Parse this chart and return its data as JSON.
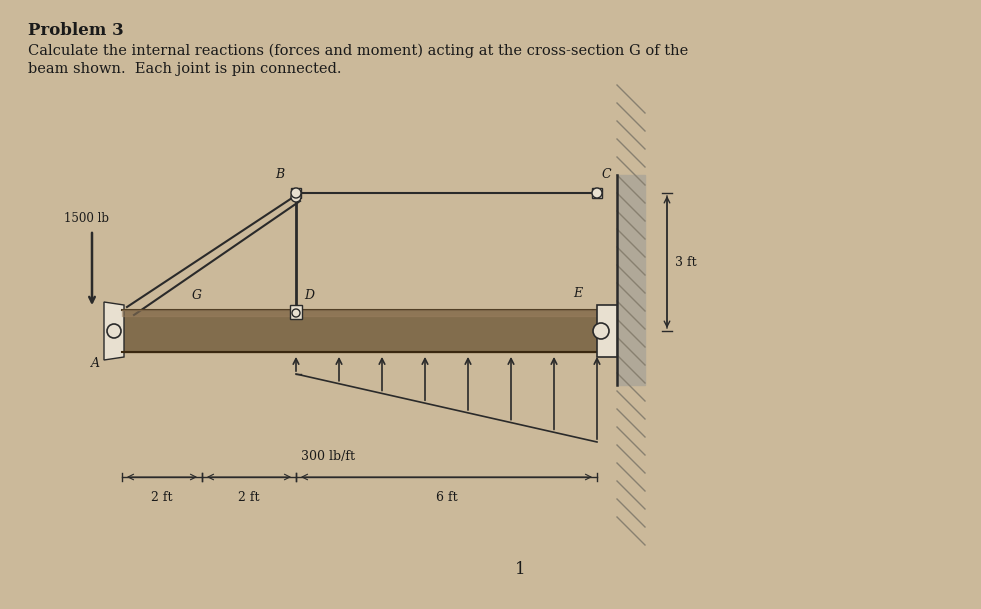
{
  "bg_color": "#cbb99a",
  "title": "Problem 3",
  "description_line1": "Calculate the internal reactions (forces and moment) acting at the cross-section G of the",
  "description_line2": "beam shown.  Each joint is pin connected.",
  "title_fontsize": 12,
  "desc_fontsize": 10.5,
  "page_number": "1",
  "beam_color": "#7a6545",
  "beam_shadow": "#5c4a2a",
  "force_label": "1500 lb",
  "dist_load_label": "300 lb/ft",
  "dim_2ft_1": "2 ft",
  "dim_2ft_2": "2 ft",
  "dim_6ft": "6 ft",
  "dim_3ft": "3 ft",
  "line_color": "#2a2a2a",
  "text_color": "#1a1a1a",
  "wall_fill": "#b0a898",
  "wall_hatch": "#888070",
  "pin_fill": "#e8e0d0",
  "note_number": "1",
  "upper_bar_color": "#c8c0b0"
}
